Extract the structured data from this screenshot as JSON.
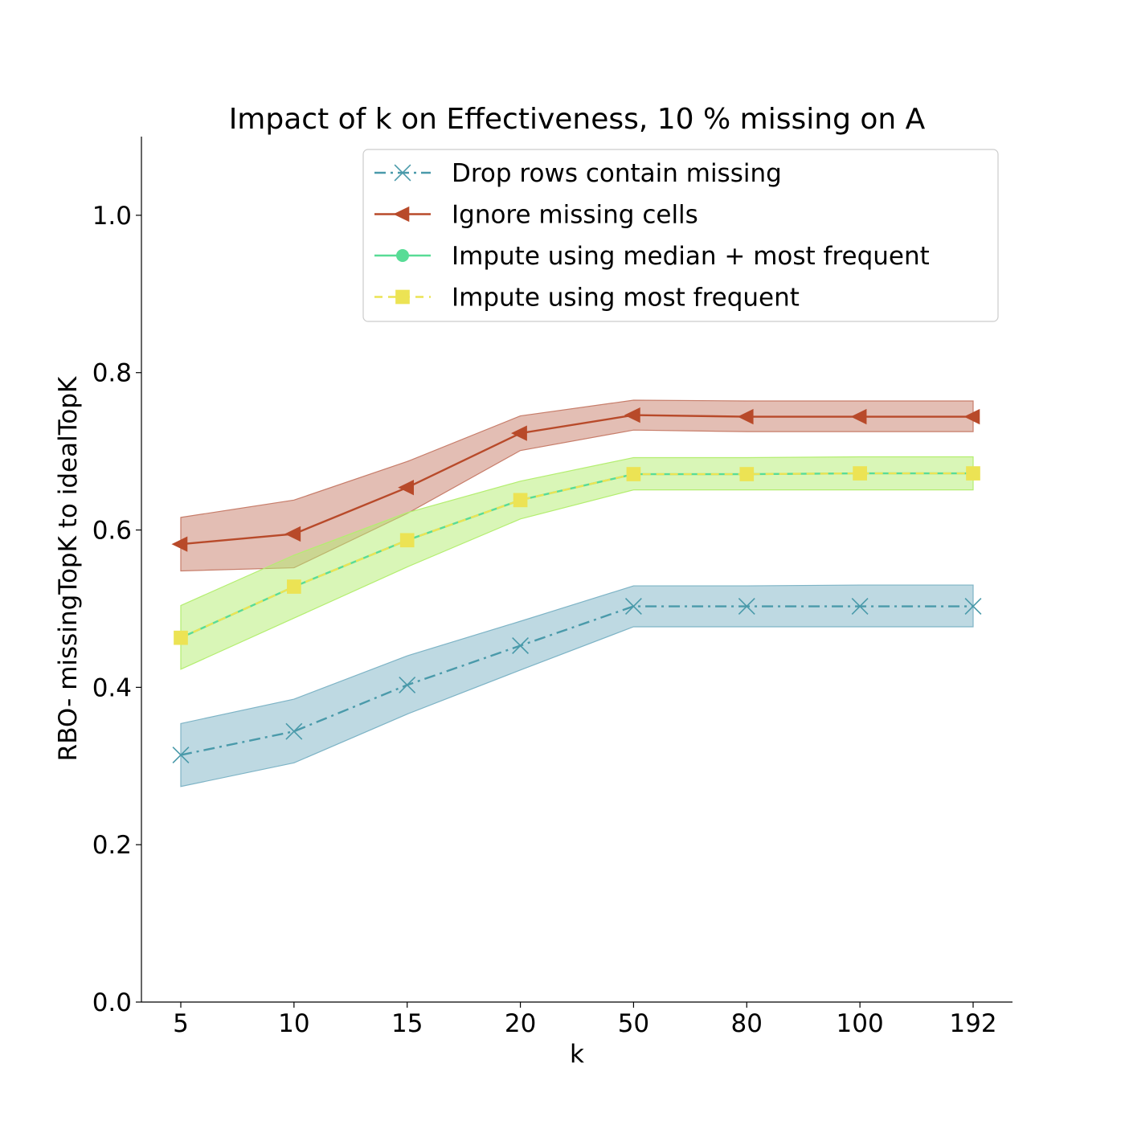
{
  "chart_data": {
    "type": "line",
    "title": "Impact of k on Effectiveness, 10 % missing on A",
    "xlabel": "k",
    "ylabel": "RBO- missingTopK to idealTopK",
    "categories": [
      "5",
      "10",
      "15",
      "20",
      "50",
      "80",
      "100",
      "192"
    ],
    "ylim": [
      0.0,
      1.1
    ],
    "yticks": [
      0.0,
      0.2,
      0.4,
      0.6,
      0.8,
      1.0
    ],
    "ytick_labels": [
      "0.0",
      "0.2",
      "0.4",
      "0.6",
      "0.8",
      "1.0"
    ],
    "grid": false,
    "legend_position": "top-right",
    "series": [
      {
        "name": "Drop rows contain missing",
        "color": "#4a9aaa",
        "band_color": "#7eb4c6",
        "line_style": "dashdot",
        "marker": "x",
        "values": [
          0.314,
          0.344,
          0.403,
          0.453,
          0.503,
          0.503,
          0.503,
          0.503
        ],
        "lower": [
          0.274,
          0.304,
          0.366,
          0.422,
          0.477,
          0.477,
          0.477,
          0.477
        ],
        "upper": [
          0.354,
          0.385,
          0.44,
          0.484,
          0.529,
          0.529,
          0.53,
          0.53
        ]
      },
      {
        "name": "Ignore missing cells",
        "color": "#b84a2a",
        "band_color": "#c77d6a",
        "line_style": "solid",
        "marker": "triangle-left",
        "values": [
          0.582,
          0.595,
          0.654,
          0.723,
          0.746,
          0.744,
          0.744,
          0.744
        ],
        "lower": [
          0.548,
          0.552,
          0.621,
          0.701,
          0.727,
          0.725,
          0.725,
          0.725
        ],
        "upper": [
          0.616,
          0.638,
          0.687,
          0.745,
          0.765,
          0.764,
          0.764,
          0.764
        ]
      },
      {
        "name": "Impute using median + most frequent",
        "color": "#58dc96",
        "band_color": "#b4ee70",
        "line_style": "solid",
        "marker": "circle",
        "values": [
          0.463,
          0.528,
          0.587,
          0.638,
          0.671,
          0.671,
          0.672,
          0.672
        ],
        "lower": [
          0.423,
          0.488,
          0.553,
          0.614,
          0.651,
          0.651,
          0.651,
          0.651
        ],
        "upper": [
          0.504,
          0.568,
          0.622,
          0.662,
          0.692,
          0.692,
          0.693,
          0.693
        ]
      },
      {
        "name": "Impute using most frequent",
        "color": "#ece354",
        "band_color": null,
        "line_style": "dashed",
        "marker": "square",
        "values": [
          0.463,
          0.528,
          0.587,
          0.638,
          0.671,
          0.671,
          0.672,
          0.672
        ],
        "lower": null,
        "upper": null
      }
    ]
  }
}
